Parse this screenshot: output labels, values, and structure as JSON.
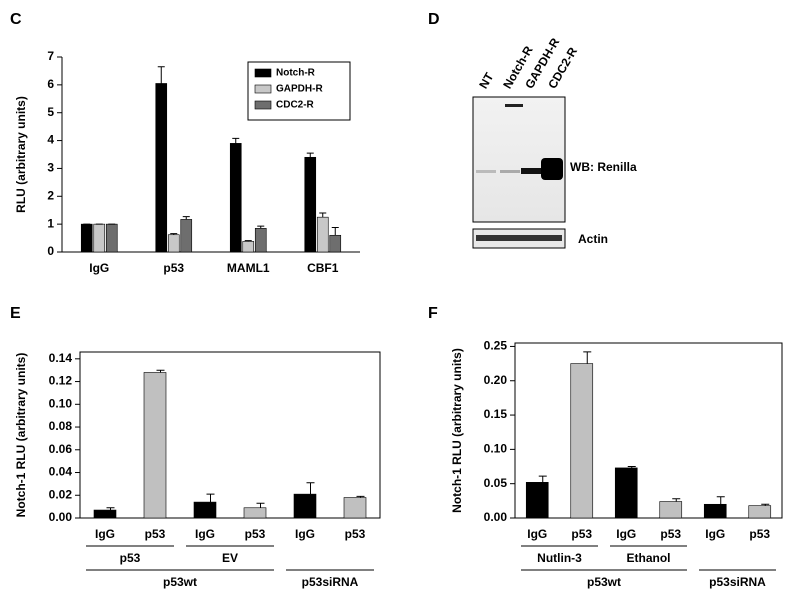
{
  "chart_data": [
    {
      "type": "bar",
      "panel": "C",
      "ylabel": "RLU (arbitrary units)",
      "categories": [
        "IgG",
        "p53",
        "MAML1",
        "CBF1"
      ],
      "series": [
        {
          "name": "Notch-R",
          "color": "#000000",
          "values": [
            1,
            6.05,
            3.9,
            3.4
          ],
          "errors": [
            0,
            0.6,
            0.18,
            0.15
          ]
        },
        {
          "name": "GAPDH-R",
          "color": "#c8c8c8",
          "values": [
            1,
            0.62,
            0.38,
            1.25
          ],
          "errors": [
            0,
            0.04,
            0.03,
            0.15
          ]
        },
        {
          "name": "CDC2-R",
          "color": "#6e6e6e",
          "values": [
            1,
            1.17,
            0.85,
            0.6
          ],
          "errors": [
            0,
            0.1,
            0.08,
            0.28
          ]
        }
      ],
      "ylim": [
        0,
        7
      ],
      "yticks": [
        0,
        1,
        2,
        3,
        4,
        5,
        6,
        7
      ],
      "legend": "upper right",
      "frame": "axes"
    },
    {
      "type": "bar",
      "panel": "E",
      "ylabel": "Notch-1 RLU (arbitrary units)",
      "categories": [
        "IgG",
        "p53",
        "IgG",
        "p53",
        "IgG",
        "p53"
      ],
      "values": [
        0.007,
        0.128,
        0.014,
        0.009,
        0.021,
        0.018
      ],
      "errors": [
        0.002,
        0.002,
        0.007,
        0.004,
        0.01,
        0.001
      ],
      "colors": [
        "#000000",
        "#c0c0c0",
        "#000000",
        "#c0c0c0",
        "#000000",
        "#c0c0c0"
      ],
      "ylim": [
        0,
        0.146
      ],
      "yticks": [
        {
          "value": 0,
          "label": "0.00"
        },
        {
          "value": 0.02,
          "label": "0.02"
        },
        {
          "value": 0.04,
          "label": "0.04"
        },
        {
          "value": 0.06,
          "label": "0.06"
        },
        {
          "value": 0.08,
          "label": "0.08"
        },
        {
          "value": 0.1,
          "label": "0.10"
        },
        {
          "value": 0.12,
          "label": "0.12"
        },
        {
          "value": 0.14,
          "label": "0.14"
        }
      ],
      "groups": [
        [
          {
            "label": "p53",
            "start": 0,
            "end": 1
          },
          {
            "label": "EV",
            "start": 2,
            "end": 3
          }
        ],
        [
          {
            "label": "p53wt",
            "start": 0,
            "end": 3
          },
          {
            "label": "p53siRNA",
            "start": 4,
            "end": 5
          }
        ]
      ],
      "frame": "box"
    },
    {
      "type": "bar",
      "panel": "F",
      "ylabel": "Notch-1 RLU (arbitrary units)",
      "categories": [
        "IgG",
        "p53",
        "IgG",
        "p53",
        "IgG",
        "p53"
      ],
      "values": [
        0.052,
        0.225,
        0.073,
        0.024,
        0.02,
        0.018
      ],
      "errors": [
        0.009,
        0.017,
        0.002,
        0.004,
        0.011,
        0.002
      ],
      "colors": [
        "#000000",
        "#c0c0c0",
        "#000000",
        "#c0c0c0",
        "#000000",
        "#c0c0c0"
      ],
      "ylim": [
        0,
        0.255
      ],
      "yticks": [
        {
          "value": 0,
          "label": "0.00"
        },
        {
          "value": 0.05,
          "label": "0.05"
        },
        {
          "value": 0.1,
          "label": "0.10"
        },
        {
          "value": 0.15,
          "label": "0.15"
        },
        {
          "value": 0.2,
          "label": "0.20"
        },
        {
          "value": 0.25,
          "label": "0.25"
        }
      ],
      "groups": [
        [
          {
            "label": "Nutlin-3",
            "start": 0,
            "end": 1
          },
          {
            "label": "Ethanol",
            "start": 2,
            "end": 3
          }
        ],
        [
          {
            "label": "p53wt",
            "start": 0,
            "end": 3
          },
          {
            "label": "p53siRNA",
            "start": 4,
            "end": 5
          }
        ]
      ],
      "frame": "box"
    }
  ],
  "blot": {
    "panel": "D",
    "lanes": [
      "NT",
      "Notch-R",
      "GAPDH-R",
      "CDC2-R"
    ],
    "labels": [
      "WB: Renilla",
      "Actin"
    ]
  }
}
